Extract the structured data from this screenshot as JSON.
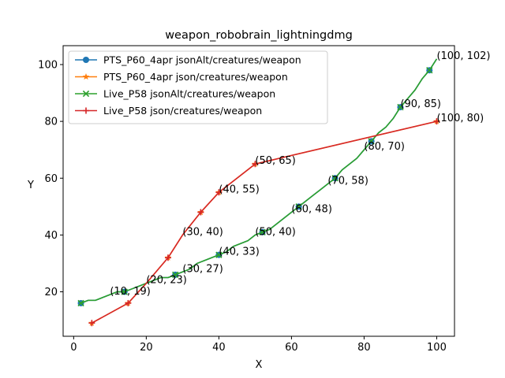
{
  "chart_data": {
    "type": "line",
    "title": "weapon_robobrain_lightningdmg",
    "xlabel": "X",
    "ylabel": "Y",
    "xlim": [
      -2.9,
      104.9
    ],
    "ylim": [
      4.35,
      106.65
    ],
    "x_ticks": [
      0,
      20,
      40,
      60,
      80,
      100
    ],
    "y_ticks": [
      20,
      40,
      60,
      80,
      100
    ],
    "grid": false,
    "legend_position": "upper-left",
    "series": [
      {
        "name": "PTS_P60_4apr jsonAlt/creatures/weapon",
        "color": "#1f77b4",
        "marker": "circle",
        "points": [
          [
            2,
            16
          ],
          [
            4,
            17
          ],
          [
            6,
            17
          ],
          [
            8,
            18
          ],
          [
            10,
            19
          ],
          [
            12,
            20
          ],
          [
            14,
            20
          ],
          [
            16,
            21
          ],
          [
            18,
            22
          ],
          [
            20,
            23
          ],
          [
            22,
            24
          ],
          [
            24,
            25
          ],
          [
            26,
            25
          ],
          [
            28,
            26
          ],
          [
            30,
            27
          ],
          [
            32,
            28
          ],
          [
            34,
            30
          ],
          [
            36,
            31
          ],
          [
            38,
            32
          ],
          [
            40,
            33
          ],
          [
            42,
            34
          ],
          [
            44,
            36
          ],
          [
            46,
            37
          ],
          [
            48,
            38
          ],
          [
            50,
            40
          ],
          [
            52,
            41
          ],
          [
            54,
            42
          ],
          [
            56,
            44
          ],
          [
            58,
            46
          ],
          [
            60,
            48
          ],
          [
            62,
            50
          ],
          [
            64,
            52
          ],
          [
            66,
            54
          ],
          [
            68,
            56
          ],
          [
            70,
            58
          ],
          [
            72,
            60
          ],
          [
            74,
            63
          ],
          [
            76,
            65
          ],
          [
            78,
            67
          ],
          [
            80,
            70
          ],
          [
            82,
            73
          ],
          [
            84,
            76
          ],
          [
            86,
            78
          ],
          [
            88,
            81
          ],
          [
            90,
            85
          ],
          [
            92,
            88
          ],
          [
            94,
            91
          ],
          [
            96,
            95
          ],
          [
            98,
            98
          ],
          [
            100,
            102
          ]
        ],
        "marker_points": [
          [
            2,
            16
          ],
          [
            14,
            20
          ],
          [
            28,
            26
          ],
          [
            40,
            33
          ],
          [
            52,
            41
          ],
          [
            62,
            50
          ],
          [
            72,
            60
          ],
          [
            82,
            73
          ],
          [
            90,
            85
          ],
          [
            98,
            98
          ]
        ]
      },
      {
        "name": "PTS_P60_4apr json/creatures/weapon",
        "color": "#ff7f0e",
        "marker": "star",
        "points": [
          [
            5,
            9
          ],
          [
            15,
            16
          ],
          [
            20,
            23
          ],
          [
            26,
            32
          ],
          [
            30,
            40
          ],
          [
            35,
            48
          ],
          [
            40,
            55
          ],
          [
            50,
            65
          ],
          [
            100,
            80
          ]
        ],
        "marker_points": [
          [
            5,
            9
          ],
          [
            15,
            16
          ],
          [
            26,
            32
          ],
          [
            35,
            48
          ],
          [
            40,
            55
          ],
          [
            50,
            65
          ],
          [
            100,
            80
          ]
        ]
      },
      {
        "name": "Live_P58 jsonAlt/creatures/weapon",
        "color": "#2ca02c",
        "marker": "x",
        "points": [
          [
            2,
            16
          ],
          [
            4,
            17
          ],
          [
            6,
            17
          ],
          [
            8,
            18
          ],
          [
            10,
            19
          ],
          [
            12,
            20
          ],
          [
            14,
            20
          ],
          [
            16,
            21
          ],
          [
            18,
            22
          ],
          [
            20,
            23
          ],
          [
            22,
            24
          ],
          [
            24,
            25
          ],
          [
            26,
            25
          ],
          [
            28,
            26
          ],
          [
            30,
            27
          ],
          [
            32,
            28
          ],
          [
            34,
            30
          ],
          [
            36,
            31
          ],
          [
            38,
            32
          ],
          [
            40,
            33
          ],
          [
            42,
            34
          ],
          [
            44,
            36
          ],
          [
            46,
            37
          ],
          [
            48,
            38
          ],
          [
            50,
            40
          ],
          [
            52,
            41
          ],
          [
            54,
            42
          ],
          [
            56,
            44
          ],
          [
            58,
            46
          ],
          [
            60,
            48
          ],
          [
            62,
            50
          ],
          [
            64,
            52
          ],
          [
            66,
            54
          ],
          [
            68,
            56
          ],
          [
            70,
            58
          ],
          [
            72,
            60
          ],
          [
            74,
            63
          ],
          [
            76,
            65
          ],
          [
            78,
            67
          ],
          [
            80,
            70
          ],
          [
            82,
            73
          ],
          [
            84,
            76
          ],
          [
            86,
            78
          ],
          [
            88,
            81
          ],
          [
            90,
            85
          ],
          [
            92,
            88
          ],
          [
            94,
            91
          ],
          [
            96,
            95
          ],
          [
            98,
            98
          ],
          [
            100,
            102
          ]
        ],
        "marker_points": [
          [
            2,
            16
          ],
          [
            14,
            20
          ],
          [
            28,
            26
          ],
          [
            40,
            33
          ],
          [
            52,
            41
          ],
          [
            62,
            50
          ],
          [
            72,
            60
          ],
          [
            82,
            73
          ],
          [
            90,
            85
          ],
          [
            98,
            98
          ]
        ]
      },
      {
        "name": "Live_P58 json/creatures/weapon",
        "color": "#d62728",
        "marker": "plus",
        "points": [
          [
            5,
            9
          ],
          [
            15,
            16
          ],
          [
            20,
            23
          ],
          [
            26,
            32
          ],
          [
            30,
            40
          ],
          [
            35,
            48
          ],
          [
            40,
            55
          ],
          [
            50,
            65
          ],
          [
            100,
            80
          ]
        ],
        "marker_points": [
          [
            5,
            9
          ],
          [
            15,
            16
          ],
          [
            26,
            32
          ],
          [
            35,
            48
          ],
          [
            40,
            55
          ],
          [
            50,
            65
          ],
          [
            100,
            80
          ]
        ]
      }
    ],
    "annotations": [
      {
        "text": "(10, 19)",
        "x": 10,
        "y": 19
      },
      {
        "text": "(20, 23)",
        "x": 20,
        "y": 23
      },
      {
        "text": "(30, 27)",
        "x": 30,
        "y": 27
      },
      {
        "text": "(30, 40)",
        "x": 30,
        "y": 40
      },
      {
        "text": "(40, 33)",
        "x": 40,
        "y": 33
      },
      {
        "text": "(40, 55)",
        "x": 40,
        "y": 55
      },
      {
        "text": "(50, 40)",
        "x": 50,
        "y": 40
      },
      {
        "text": "(50, 65)",
        "x": 50,
        "y": 65
      },
      {
        "text": "(60, 48)",
        "x": 60,
        "y": 48
      },
      {
        "text": "(70, 58)",
        "x": 70,
        "y": 58
      },
      {
        "text": "(80, 70)",
        "x": 80,
        "y": 70
      },
      {
        "text": "(90, 85)",
        "x": 90,
        "y": 85
      },
      {
        "text": "(100, 80)",
        "x": 100,
        "y": 80
      },
      {
        "text": "(100, 102)",
        "x": 100,
        "y": 102
      }
    ]
  }
}
